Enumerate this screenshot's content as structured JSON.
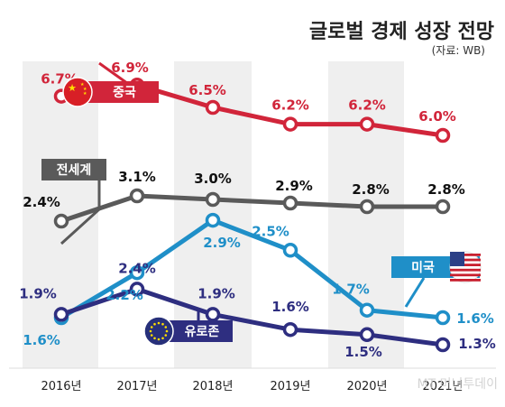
{
  "chart_data": {
    "type": "line",
    "title": "글로벌 경제 성장 전망",
    "subtitle": "(자료: WB)",
    "categories": [
      "2016년",
      "2017년",
      "2018년",
      "2019년",
      "2020년",
      "2021년"
    ],
    "value_suffix": "%",
    "series": [
      {
        "name": "중국",
        "values": [
          6.7,
          6.9,
          6.5,
          6.2,
          6.2,
          6.0
        ],
        "color": "#d1253a"
      },
      {
        "name": "전세계",
        "values": [
          2.4,
          3.1,
          3.0,
          2.9,
          2.8,
          2.8
        ],
        "color": "#5a5a5a"
      },
      {
        "name": "미국",
        "values": [
          1.6,
          2.2,
          2.9,
          2.5,
          1.7,
          1.6
        ],
        "color": "#1f8fc8"
      },
      {
        "name": "유로존",
        "values": [
          1.9,
          2.4,
          1.9,
          1.6,
          1.5,
          1.3
        ],
        "color": "#2e2e80"
      }
    ],
    "label_colors": {
      "중국": "#d1253a",
      "전세계": "#111111",
      "미국": "#1f8fc8",
      "유로존": "#2e2e80"
    }
  },
  "watermark": "MT 머니투데이",
  "icons": {
    "china": "china-flag-icon",
    "us": "us-flag-icon",
    "eu": "eu-flag-icon"
  }
}
